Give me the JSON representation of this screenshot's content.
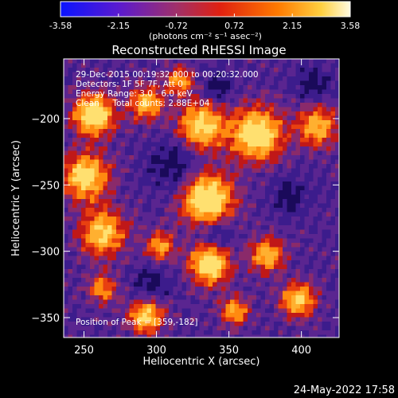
{
  "colorbar": {
    "ticks": [
      "-3.58",
      "-2.15",
      "-0.72",
      "0.72",
      "2.15",
      "3.58"
    ],
    "units_label": "(photons cm⁻² s⁻¹ asec⁻²)",
    "colors": [
      "#0a14ff",
      "#5a1ad0",
      "#a0306a",
      "#e02010",
      "#ff7a00",
      "#ffd040",
      "#fffbe0"
    ]
  },
  "plot": {
    "title": "Reconstructed RHESSI Image",
    "xlabel": "Heliocentric X (arcsec)",
    "ylabel": "Heliocentric Y (arcsec)",
    "xticks": [
      "250",
      "300",
      "350",
      "400"
    ],
    "yticks": [
      "-200",
      "-250",
      "-300",
      "-350"
    ],
    "xlim": [
      236,
      426
    ],
    "ylim": [
      -365,
      -155
    ],
    "annotations": {
      "line1": "29-Dec-2015 00:19:32.000 to 00:20:32.000",
      "line2": "Detectors: 1F 5F 7F, Att 0",
      "line3": "Energy Range: 3.0 - 6.0 keV",
      "line4": "Clean     Total counts: 2.88E+04",
      "peak": "Position of Peak = [359,-182]"
    }
  },
  "footer": {
    "timestamp": "24-May-2022 17:58"
  },
  "palette": {
    "background": "#000000",
    "low": "#3c1c8c",
    "mid": "#c01818",
    "high": "#ffd040"
  }
}
